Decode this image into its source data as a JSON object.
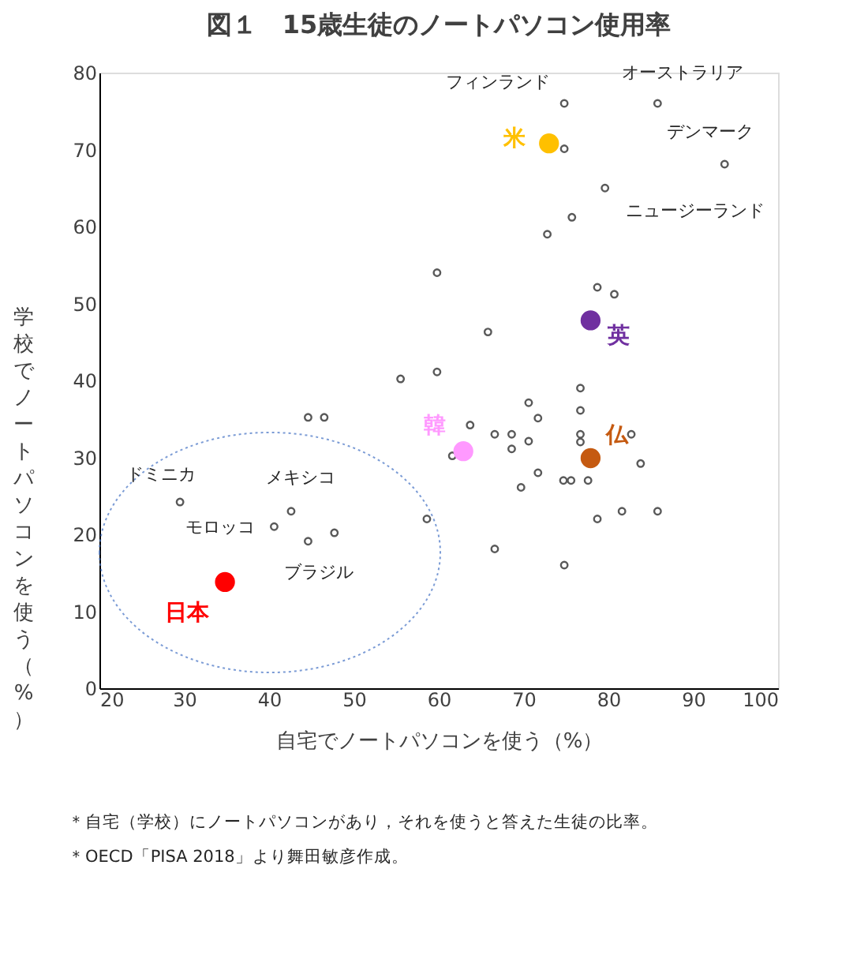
{
  "chart_data": {
    "type": "scatter",
    "title": "図１　15歳生徒のノートパソコン使用率",
    "xlabel": "自宅でノートパソコンを使う（%）",
    "ylabel": "学校でノートパソコンを使う（%）",
    "xlim": [
      20,
      100
    ],
    "xticks": [
      20,
      30,
      40,
      50,
      60,
      70,
      80,
      90,
      100
    ],
    "ylim": [
      0,
      80
    ],
    "yticks": [
      0,
      10,
      20,
      30,
      40,
      50,
      60,
      70,
      80
    ],
    "grid": false,
    "marker": "circle",
    "series": [
      {
        "color": "#595959",
        "x": [
          74.8,
          85.8,
          74.8,
          93.7,
          79.6,
          75.7,
          72.8,
          59.8,
          78.7,
          80.7,
          65.8,
          55.5,
          59.8,
          76.7,
          70.6,
          76.7,
          71.7,
          63.7,
          61.6,
          66.6,
          68.6,
          68.6,
          70.6,
          76.7,
          76.7,
          82.7,
          83.8,
          71.7,
          69.7,
          74.7,
          75.6,
          77.6,
          58.6,
          78.7,
          81.6,
          85.8,
          66.6,
          74.8,
          44.6,
          46.5,
          29.5,
          42.6,
          40.6,
          44.6,
          47.7
        ],
        "values": [
          76.0,
          76.0,
          70.1,
          68.1,
          65.0,
          61.2,
          59.0,
          54.0,
          52.1,
          51.2,
          46.3,
          40.2,
          41.1,
          39.0,
          37.1,
          36.1,
          35.1,
          34.2,
          30.2,
          33.0,
          33.0,
          31.1,
          32.1,
          33.0,
          32.0,
          33.0,
          29.2,
          28.0,
          26.1,
          27.0,
          27.0,
          27.0,
          22.0,
          22.0,
          23.0,
          23.0,
          18.1,
          16.0,
          35.2,
          35.2,
          24.2,
          23.0,
          21.0,
          19.1,
          20.2
        ]
      },
      {
        "name": "米",
        "color": "#ffc000",
        "x": [
          73.0
        ],
        "values": [
          70.8
        ]
      },
      {
        "name": "英",
        "color": "#7030a0",
        "x": [
          77.9
        ],
        "values": [
          47.8
        ]
      },
      {
        "name": "韓",
        "color": "#ff99ff",
        "x": [
          62.9
        ],
        "values": [
          30.8
        ]
      },
      {
        "name": "仏",
        "color": "#c55a11",
        "x": [
          77.9
        ],
        "values": [
          29.9
        ]
      },
      {
        "name": "日本",
        "color": "#ff0000",
        "x": [
          34.8
        ],
        "values": [
          13.8
        ]
      }
    ],
    "annotations": [
      {
        "text": "フィンランド",
        "x": 74.8,
        "y": 76.0
      },
      {
        "text": "オーストラリア",
        "x": 85.8,
        "y": 76.0
      },
      {
        "text": "デンマーク",
        "x": 93.7,
        "y": 68.1
      },
      {
        "text": "ニュージーランド",
        "x": 79.6,
        "y": 65.0
      },
      {
        "text": "ドミニカ",
        "x": 29.5,
        "y": 24.2
      },
      {
        "text": "メキシコ",
        "x": 42.6,
        "y": 23.0
      },
      {
        "text": "モロッコ",
        "x": 40.6,
        "y": 21.0
      },
      {
        "text": "ブラジル",
        "x": 44.6,
        "y": 19.1
      },
      "＊自宅（学校）にノートパソコンがあり，それを使うと答えた生徒の比率。",
      "＊OECD「PISA 2018」より舞田敏彦作成。"
    ]
  }
}
